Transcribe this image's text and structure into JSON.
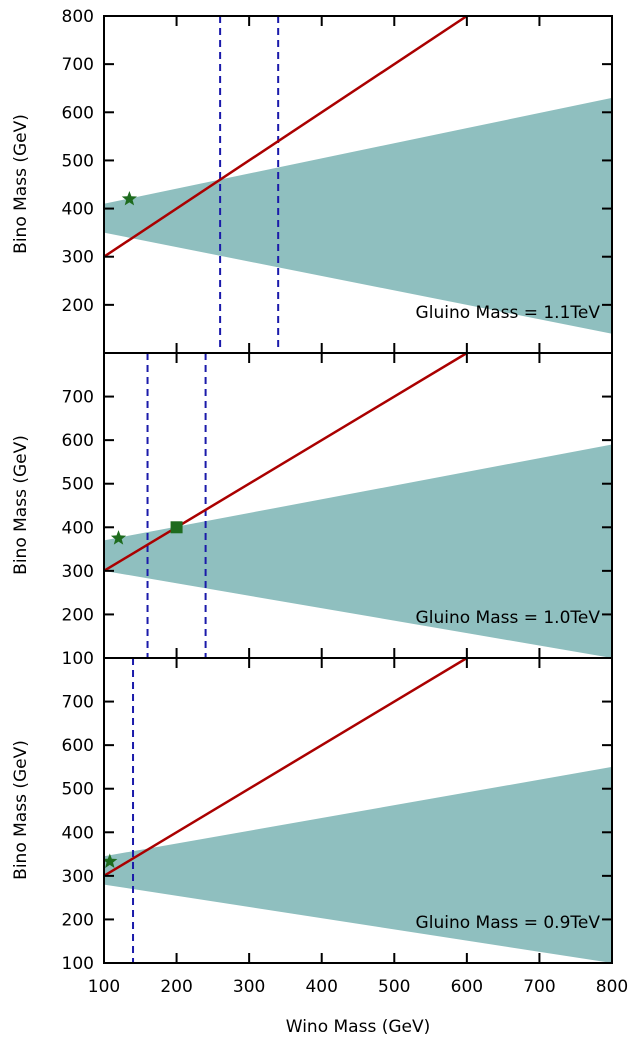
{
  "colors": {
    "band": "#8fbfbf",
    "diagonal_line": "#aa0000",
    "dashed_line": "#1a1aaa",
    "marker": "#1e6b1e",
    "frame": "#000000"
  },
  "axes": {
    "xlabel": "Wino Mass (GeV)",
    "ylabel": "Bino Mass (GeV)",
    "xlim": [
      100,
      800
    ],
    "xticks": [
      "100",
      "200",
      "300",
      "400",
      "500",
      "600",
      "700",
      "800"
    ],
    "xticks_values": [
      100,
      200,
      300,
      400,
      500,
      600,
      700,
      800
    ]
  },
  "chart_data": [
    {
      "type": "area",
      "annotation": "Gluino Mass = 1.1TeV",
      "ylim": [
        100,
        800
      ],
      "yticks": [
        "200",
        "300",
        "400",
        "500",
        "600",
        "700",
        "800"
      ],
      "yticks_values": [
        200,
        300,
        400,
        500,
        600,
        700,
        800
      ],
      "band": {
        "x": [
          100,
          800
        ],
        "upper": [
          410,
          630
        ],
        "lower": [
          350,
          140
        ]
      },
      "line": {
        "x": [
          100,
          600
        ],
        "y": [
          300,
          800
        ]
      },
      "vlines": [
        260,
        340
      ],
      "markers": [
        {
          "shape": "star",
          "x": 135,
          "y": 420
        }
      ]
    },
    {
      "type": "area",
      "annotation": "Gluino Mass = 1.0TeV",
      "ylim": [
        100,
        800
      ],
      "yticks": [
        "100",
        "200",
        "300",
        "400",
        "500",
        "600",
        "700"
      ],
      "yticks_values": [
        100,
        200,
        300,
        400,
        500,
        600,
        700
      ],
      "band": {
        "x": [
          100,
          800
        ],
        "upper": [
          370,
          590
        ],
        "lower": [
          300,
          100
        ]
      },
      "line": {
        "x": [
          100,
          600
        ],
        "y": [
          300,
          800
        ]
      },
      "vlines": [
        160,
        240
      ],
      "markers": [
        {
          "shape": "star",
          "x": 120,
          "y": 375
        },
        {
          "shape": "square",
          "x": 200,
          "y": 400
        }
      ]
    },
    {
      "type": "area",
      "annotation": "Gluino Mass = 0.9TeV",
      "ylim": [
        100,
        800
      ],
      "yticks": [
        "100",
        "200",
        "300",
        "400",
        "500",
        "600",
        "700"
      ],
      "yticks_values": [
        100,
        200,
        300,
        400,
        500,
        600,
        700
      ],
      "band": {
        "x": [
          100,
          800
        ],
        "upper": [
          345,
          550
        ],
        "lower": [
          280,
          100
        ]
      },
      "line": {
        "x": [
          100,
          600
        ],
        "y": [
          300,
          800
        ]
      },
      "vlines": [
        140
      ],
      "markers": [
        {
          "shape": "star",
          "x": 108,
          "y": 333
        }
      ]
    }
  ]
}
